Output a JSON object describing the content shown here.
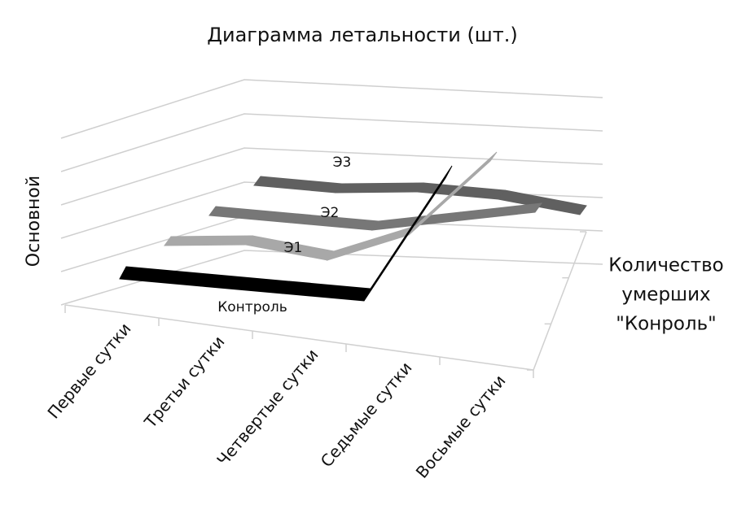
{
  "chart_data": {
    "type": "line",
    "title": "Диаграмма летальности (шт.)",
    "ylabel": "Основной",
    "zlabel": [
      "Количество",
      "умерших",
      "\"Конроль\""
    ],
    "categories": [
      "Первые сутки",
      "Третьи сутки",
      "Четвертые сутки",
      "Седьмые сутки",
      "Восьмые сутки"
    ],
    "ylim": [
      0,
      10
    ],
    "grid": true,
    "series": [
      {
        "name": "Контроль",
        "color": "#000000",
        "values": [
          0,
          0,
          0,
          0,
          8
        ]
      },
      {
        "name": "Э1",
        "color": "#a8a8a8",
        "values": [
          0,
          0.5,
          0,
          2,
          7
        ]
      },
      {
        "name": "Э2",
        "color": "#777777",
        "values": [
          0,
          0,
          0,
          1,
          2
        ]
      },
      {
        "name": "Э3",
        "color": "#606060",
        "values": [
          0,
          0,
          0.5,
          0.5,
          0
        ]
      }
    ]
  }
}
